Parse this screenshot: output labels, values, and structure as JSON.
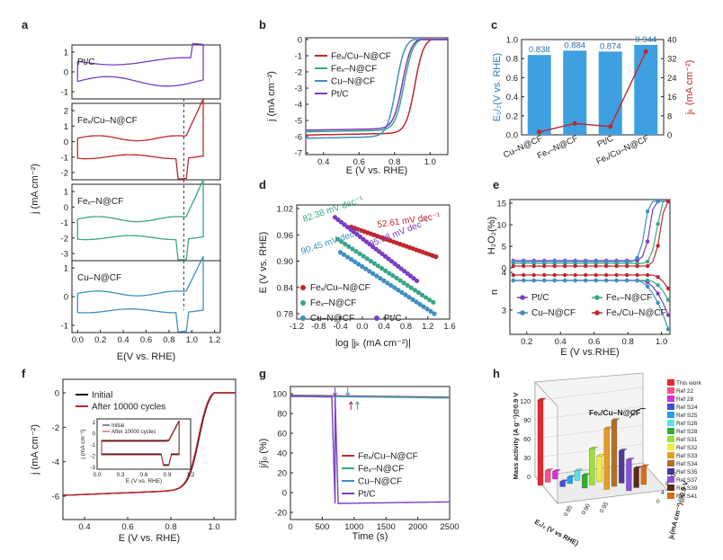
{
  "colors": {
    "red": "#c0272d",
    "green": "#3aa588",
    "blue": "#3f8fc2",
    "purple": "#7a3ec4",
    "bar": "#3ea0e0",
    "black": "#111111"
  },
  "panel_labels": [
    "a",
    "b",
    "c",
    "d",
    "e",
    "f",
    "g",
    "h"
  ],
  "chart_data": [
    {
      "id": "a",
      "type": "line",
      "title": "",
      "xlabel": "E(V vs. RHE)",
      "ylabel": "j (mA cm⁻²)",
      "xticks": [
        "0.0",
        "0.2",
        "0.4",
        "0.6",
        "0.8",
        "1.0",
        "1.2"
      ],
      "dashed_line_x": 0.93,
      "subplots": [
        {
          "label": "Pt/C",
          "yticks": [
            "1",
            "0",
            "-1"
          ],
          "color": "#7a3ec4"
        },
        {
          "label": "Feₓ/Cu–N@CF",
          "yticks": [
            "2",
            "1",
            "0",
            "-1",
            "-2"
          ],
          "color": "#c0272d"
        },
        {
          "label": "Feₓ–N@CF",
          "yticks": [
            "1",
            "0",
            "-1",
            "-2",
            "-3"
          ],
          "color": "#3aa588"
        },
        {
          "label": "Cu–N@CF",
          "yticks": [
            "1",
            "0",
            "-1"
          ],
          "color": "#3f8fc2"
        }
      ]
    },
    {
      "id": "b",
      "type": "line",
      "xlabel": "E (V vs. RHE)",
      "ylabel": "j (mA cm⁻²)",
      "xlim": [
        0.3,
        1.1
      ],
      "ylim": [
        -7,
        0
      ],
      "xticks": [
        "0.4",
        "0.6",
        "0.8",
        "1.0"
      ],
      "yticks": [
        "0",
        "-1",
        "-2",
        "-3",
        "-4",
        "-5",
        "-6",
        "-7"
      ],
      "series": [
        {
          "name": "Feₓ/Cu–N@CF",
          "e_half": 0.944,
          "limit": -5.9,
          "color": "#c0272d"
        },
        {
          "name": "Feₓ–N@CF",
          "e_half": 0.884,
          "limit": -5.7,
          "color": "#3aa588"
        },
        {
          "name": "Cu–N@CF",
          "e_half": 0.838,
          "limit": -6.1,
          "color": "#3f8fc2"
        },
        {
          "name": "Pt/C",
          "e_half": 0.874,
          "limit": -5.6,
          "color": "#7a3ec4"
        }
      ]
    },
    {
      "id": "c",
      "type": "bar",
      "categories": [
        "Cu–N@CF",
        "Feₓ–N@CF",
        "Pt/C",
        "Feₓ/Cu–N@CF"
      ],
      "values": [
        0.838,
        0.884,
        0.874,
        0.944
      ],
      "value_labels": [
        "0.838",
        "0.884",
        "0.874",
        "0.944"
      ],
      "ylabel": "E₁/₂(V vs. RHE)",
      "ylim": [
        0,
        1.0
      ],
      "yticks": [
        "0.0",
        "0.2",
        "0.4",
        "0.6",
        "0.8",
        "1.0"
      ],
      "y2label": "jₖ (mA cm⁻²)",
      "y2lim": [
        0,
        40
      ],
      "y2ticks": [
        "0",
        "8",
        "16",
        "24",
        "32",
        "40"
      ],
      "y2_values": [
        1.2,
        4.8,
        3.5,
        35.0
      ]
    },
    {
      "id": "d",
      "type": "scatter",
      "xlabel": "log |jₖ (mA cm⁻²)|",
      "ylabel": "E (V vs. RHE)",
      "xlim": [
        -1.2,
        1.6
      ],
      "ylim": [
        0.76,
        1.03
      ],
      "xticks": [
        "-1.2",
        "-0.8",
        "-0.4",
        "0.0",
        "0.4",
        "0.8",
        "1.2",
        "1.6"
      ],
      "yticks": [
        "1.02",
        "0.96",
        "0.90",
        "0.84",
        "0.78"
      ],
      "series": [
        {
          "name": "Feₓ/Cu–N@CF",
          "slope_label": "52.61 mV dec⁻¹",
          "x0": -0.2,
          "y0": 0.978,
          "x1": 1.35,
          "y1": 0.91,
          "color": "#c0272d"
        },
        {
          "name": "Feₓ–N@CF",
          "slope_label": "82.38 mV dec⁻¹",
          "x0": -0.45,
          "y0": 0.95,
          "x1": 1.3,
          "y1": 0.806,
          "color": "#3aa588"
        },
        {
          "name": "Cu–N@CF",
          "slope_label": "90.45 mV dec⁻¹",
          "x0": -0.4,
          "y0": 0.92,
          "x1": 1.32,
          "y1": 0.78,
          "color": "#3f8fc2"
        },
        {
          "name": "Pt/C",
          "slope_label": "95.08 mV dec⁻¹",
          "x0": -0.5,
          "y0": 1.0,
          "x1": 1.0,
          "y1": 0.855,
          "color": "#7a3ec4"
        }
      ]
    },
    {
      "id": "e",
      "type": "line",
      "xlabel": "E (V vs.RHE)",
      "ylabel_top": "H₂O₂(%)",
      "ylabel_bottom": "n",
      "xticks": [
        "0.2",
        "0.4",
        "0.6",
        "0.8",
        "1.0"
      ],
      "yticks_top": [
        "15",
        "10",
        "5",
        "0"
      ],
      "yticks_bottom": [
        "4",
        "3"
      ],
      "series": [
        {
          "name": "Pt/C",
          "color": "#7a3ec4"
        },
        {
          "name": "Feₓ–N@CF",
          "color": "#3aa588"
        },
        {
          "name": "Cu–N@CF",
          "color": "#3f8fc2"
        },
        {
          "name": "Feₓ/Cu–N@CF",
          "color": "#c0272d"
        }
      ]
    },
    {
      "id": "f",
      "type": "line",
      "xlabel": "E (V vs. RHE)",
      "ylabel": "j (mA cm⁻²)",
      "xticks": [
        "0.4",
        "0.6",
        "0.8",
        "1.0"
      ],
      "yticks": [
        "0",
        "-2",
        "-4",
        "-6"
      ],
      "series": [
        {
          "name": "Initial",
          "color": "#111111"
        },
        {
          "name": "After 10000 cycles",
          "color": "#c0272d"
        }
      ],
      "inset": {
        "xlabel": "E (V vs. RHE)",
        "ylabel": "j (mA cm⁻²)",
        "xticks": [
          "0.0",
          "0.3",
          "0.6",
          "0.9",
          "1.2"
        ],
        "yticks": [
          "1",
          "0",
          "-1",
          "-2",
          "-3"
        ],
        "legend": [
          "Initial",
          "After 10000 cycles"
        ]
      }
    },
    {
      "id": "g",
      "type": "line",
      "xlabel": "Time (s)",
      "ylabel": "j/j₀ (%)",
      "xlim": [
        0,
        2500
      ],
      "ylim": [
        -20,
        100
      ],
      "xticks": [
        "0",
        "500",
        "1000",
        "1500",
        "2000",
        "2500"
      ],
      "yticks": [
        "100",
        "80",
        "60",
        "40",
        "20",
        "0",
        "-20"
      ],
      "series": [
        {
          "name": "Feₓ/Cu–N@CF",
          "color": "#c0272d"
        },
        {
          "name": "Feₓ–N@CF",
          "color": "#3aa588"
        },
        {
          "name": "Cu–N@CF",
          "color": "#3f8fc2"
        },
        {
          "name": "Pt/C",
          "color": "#7a3ec4"
        }
      ]
    },
    {
      "id": "h",
      "type": "bar3d",
      "zlabel": "Mass activity (A g⁻¹)@0.9 V",
      "xlabel": "E₁/₂ (V vs RHE)",
      "ylabel": "jₖ(mA cm⁻²)@0.9 V",
      "zticks": [
        "0",
        "30",
        "60",
        "90",
        "120"
      ],
      "xticks": [
        "0.85",
        "0.90",
        "0.95"
      ],
      "yticks": [
        "0",
        "4",
        "8",
        "12"
      ],
      "annotation": "Feₓ/Cu–N@CF",
      "legend": [
        "This work",
        "Ref 22",
        "Ref 28",
        "Ref S24",
        "Ref S25",
        "Ref S26",
        "Ref S28",
        "Ref S31",
        "Ref S32",
        "Ref S33",
        "Ref S34",
        "Ref S35",
        "Ref S37",
        "Ref S39",
        "Ref S41"
      ],
      "legend_colors": [
        "#e8252a",
        "#ff4d8a",
        "#d62fd6",
        "#3f4ed8",
        "#1fa0e8",
        "#5be3e8",
        "#2fae2f",
        "#9be22f",
        "#f0ee30",
        "#e89b21",
        "#b46e28",
        "#4b3a9b",
        "#8a4ee0",
        "#5a2b12",
        "#e06a12"
      ],
      "values": [
        132,
        18,
        12,
        8,
        10,
        15,
        20,
        56,
        40,
        94,
        102,
        50,
        48,
        30,
        28
      ]
    }
  ]
}
